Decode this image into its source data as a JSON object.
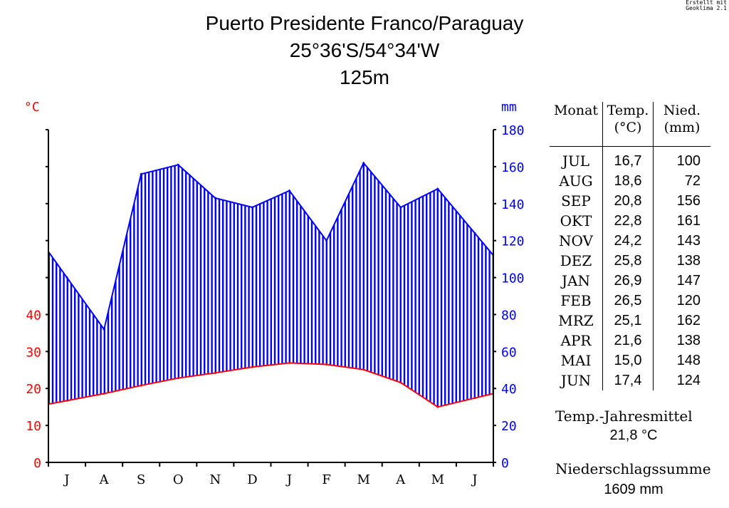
{
  "header": {
    "title": "Puerto Presidente Franco/Paraguay",
    "coordinates": "25°36'S/54°34'W",
    "elevation": "125m",
    "watermark_line1": "Erstellt mit",
    "watermark_line2": "Geoklima 2.1"
  },
  "colors": {
    "temperature": "#ff0000",
    "precipitation": "#0000ff",
    "axis": "#000000"
  },
  "chart_data": {
    "type": "climate-diagram",
    "months": [
      "J",
      "A",
      "S",
      "O",
      "N",
      "D",
      "J",
      "F",
      "M",
      "A",
      "M",
      "J"
    ],
    "temperature": [
      16.7,
      18.6,
      20.8,
      22.8,
      24.2,
      25.8,
      26.9,
      26.5,
      25.1,
      21.6,
      15.0,
      17.4
    ],
    "precipitation": [
      100,
      72,
      156,
      161,
      143,
      138,
      147,
      120,
      162,
      138,
      148,
      124
    ],
    "left_axis_unit": "°C",
    "right_axis_unit": "mm",
    "left_ticks": [
      "0",
      "10",
      "20",
      "30",
      "40"
    ],
    "left_tick_values": [
      0,
      10,
      20,
      30,
      40
    ],
    "right_ticks": [
      "0",
      "20",
      "40",
      "60",
      "80",
      "100",
      "120",
      "140",
      "160",
      "180"
    ],
    "right_tick_values": [
      0,
      20,
      40,
      60,
      80,
      100,
      120,
      140,
      160,
      180
    ],
    "precip_ylim": [
      0,
      180
    ],
    "temp_ylim": [
      0,
      50
    ]
  },
  "table": {
    "headers": [
      "Monat",
      "Temp.",
      "Nied."
    ],
    "subheaders": [
      "",
      "(°C)",
      "(mm)"
    ],
    "rows": [
      {
        "month": "JUL",
        "temp": "16,7",
        "precip": "100"
      },
      {
        "month": "AUG",
        "temp": "18,6",
        "precip": "72"
      },
      {
        "month": "SEP",
        "temp": "20,8",
        "precip": "156"
      },
      {
        "month": "OKT",
        "temp": "22,8",
        "precip": "161"
      },
      {
        "month": "NOV",
        "temp": "24,2",
        "precip": "143"
      },
      {
        "month": "DEZ",
        "temp": "25,8",
        "precip": "138"
      },
      {
        "month": "JAN",
        "temp": "26,9",
        "precip": "147"
      },
      {
        "month": "FEB",
        "temp": "26,5",
        "precip": "120"
      },
      {
        "month": "MRZ",
        "temp": "25,1",
        "precip": "162"
      },
      {
        "month": "APR",
        "temp": "21,6",
        "precip": "138"
      },
      {
        "month": "MAI",
        "temp": "15,0",
        "precip": "148"
      },
      {
        "month": "JUN",
        "temp": "17,4",
        "precip": "124"
      }
    ]
  },
  "summary": {
    "mean_label": "Temp.-Jahresmittel",
    "mean_value": "21,8 °C",
    "sum_label": "Niederschlagssumme",
    "sum_value": "1609 mm"
  }
}
